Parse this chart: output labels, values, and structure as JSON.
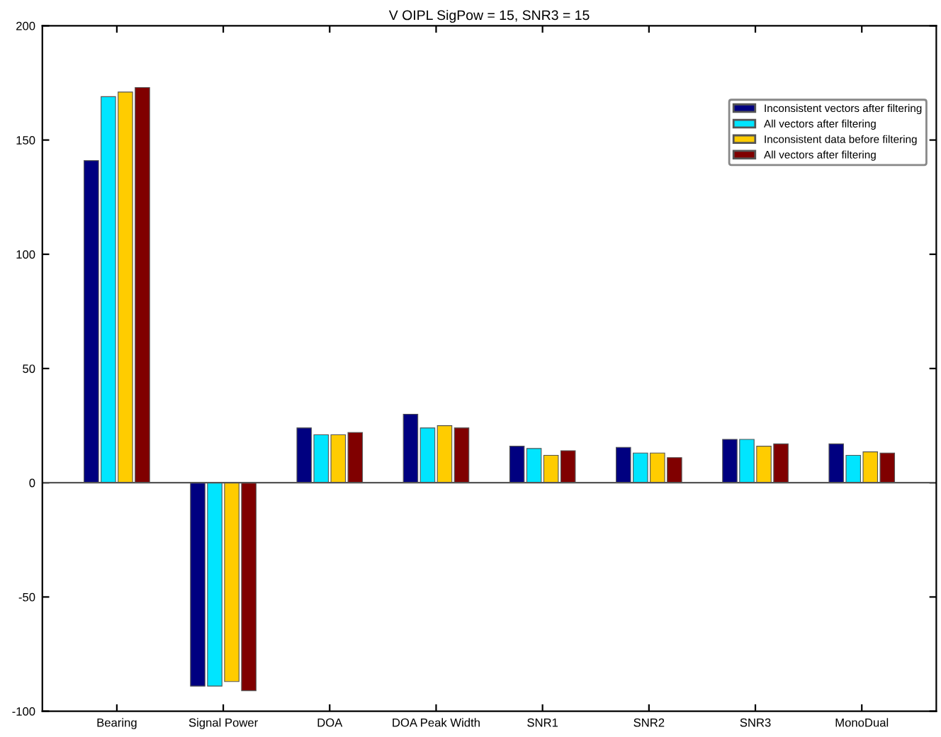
{
  "chart_data": {
    "type": "bar",
    "title": "V OIPL SigPow = 15, SNR3 = 15",
    "categories": [
      "Bearing",
      "Signal Power",
      "DOA",
      "DOA Peak Width",
      "SNR1",
      "SNR2",
      "SNR3",
      "MonoDual"
    ],
    "series": [
      {
        "name": "Inconsistent vectors after filtering",
        "color": "#000080",
        "values": [
          141,
          -89,
          24,
          30,
          16,
          15.5,
          19,
          17
        ]
      },
      {
        "name": "All vectors after filtering",
        "color": "#00e5ff",
        "values": [
          169,
          -89,
          21,
          24,
          15,
          13,
          19,
          12
        ]
      },
      {
        "name": "Inconsistent data before filtering",
        "color": "#ffcc00",
        "values": [
          171,
          -87,
          21,
          25,
          12,
          13,
          16,
          13.5
        ]
      },
      {
        "name": "All vectors after filtering",
        "color": "#800000",
        "values": [
          173,
          -91,
          22,
          24,
          14,
          11,
          17,
          13
        ]
      }
    ],
    "ylim": [
      -100,
      200
    ],
    "yticks": [
      -100,
      -50,
      0,
      50,
      100,
      150,
      200
    ],
    "legend": "top right"
  }
}
